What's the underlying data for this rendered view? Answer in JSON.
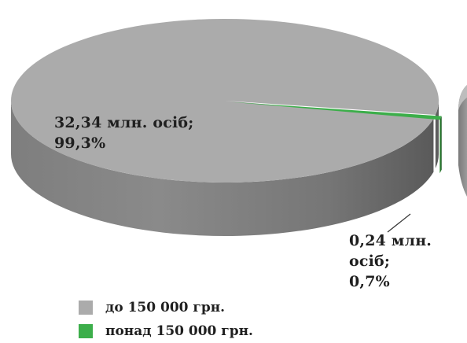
{
  "chart_data": {
    "type": "pie",
    "slices": [
      {
        "label": "до 150 000 грн.",
        "value_text": "32,34 млн. осіб;",
        "percent_text": "99,3%",
        "value": 32.34,
        "percent": 99.3,
        "color": "#ababab"
      },
      {
        "label": "понад 150 000 грн.",
        "value_text": "0,24 млн. осіб;",
        "percent_text": "0,7%",
        "value": 0.24,
        "percent": 0.7,
        "color": "#3cae4a"
      }
    ],
    "legend": [
      {
        "label": "до 150 000 грн.",
        "color": "#ababab"
      },
      {
        "label": "понад 150 000 грн.",
        "color": "#3cae4a"
      }
    ],
    "legend_position": "bottom-left"
  }
}
